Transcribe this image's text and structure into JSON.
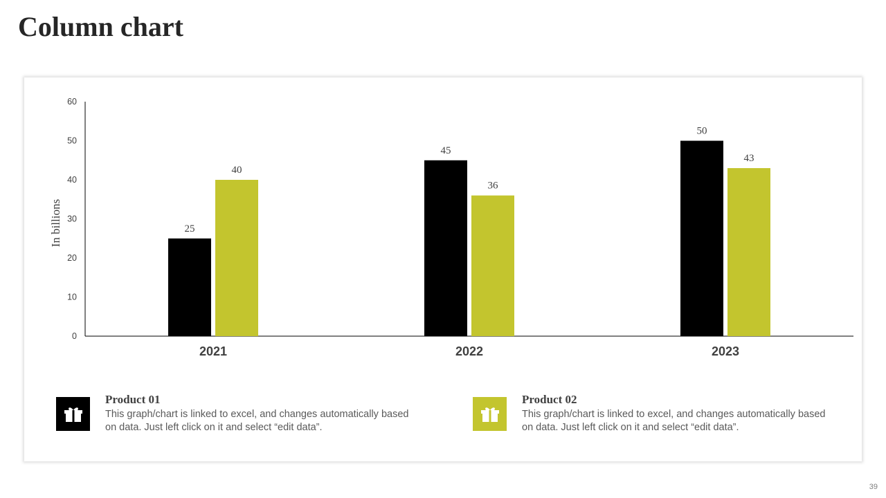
{
  "page": {
    "title": "Column chart",
    "slide_number": "39"
  },
  "legend": [
    {
      "heading": "Product 01",
      "description": "This graph/chart is linked to excel, and changes automatically based on data. Just left click on it and select “edit data”.",
      "icon": "gift-box-icon",
      "color": "#000000"
    },
    {
      "heading": "Product 02",
      "description": "This graph/chart is linked to excel, and changes automatically based on data. Just left click on it and select “edit data”.",
      "icon": "gift-box-icon",
      "color": "#c3c52e"
    }
  ],
  "chart_data": {
    "type": "bar",
    "categories": [
      "2021",
      "2022",
      "2023"
    ],
    "series": [
      {
        "values": [
          25,
          45,
          50
        ],
        "color": "#000000"
      },
      {
        "values": [
          40,
          36,
          43
        ],
        "color": "#c3c52e"
      }
    ],
    "ylabel": "In billions",
    "ylim": [
      0,
      60
    ],
    "yticks": [
      0,
      10,
      20,
      30,
      40,
      50,
      60
    ],
    "grid": false,
    "data_labels": true
  }
}
